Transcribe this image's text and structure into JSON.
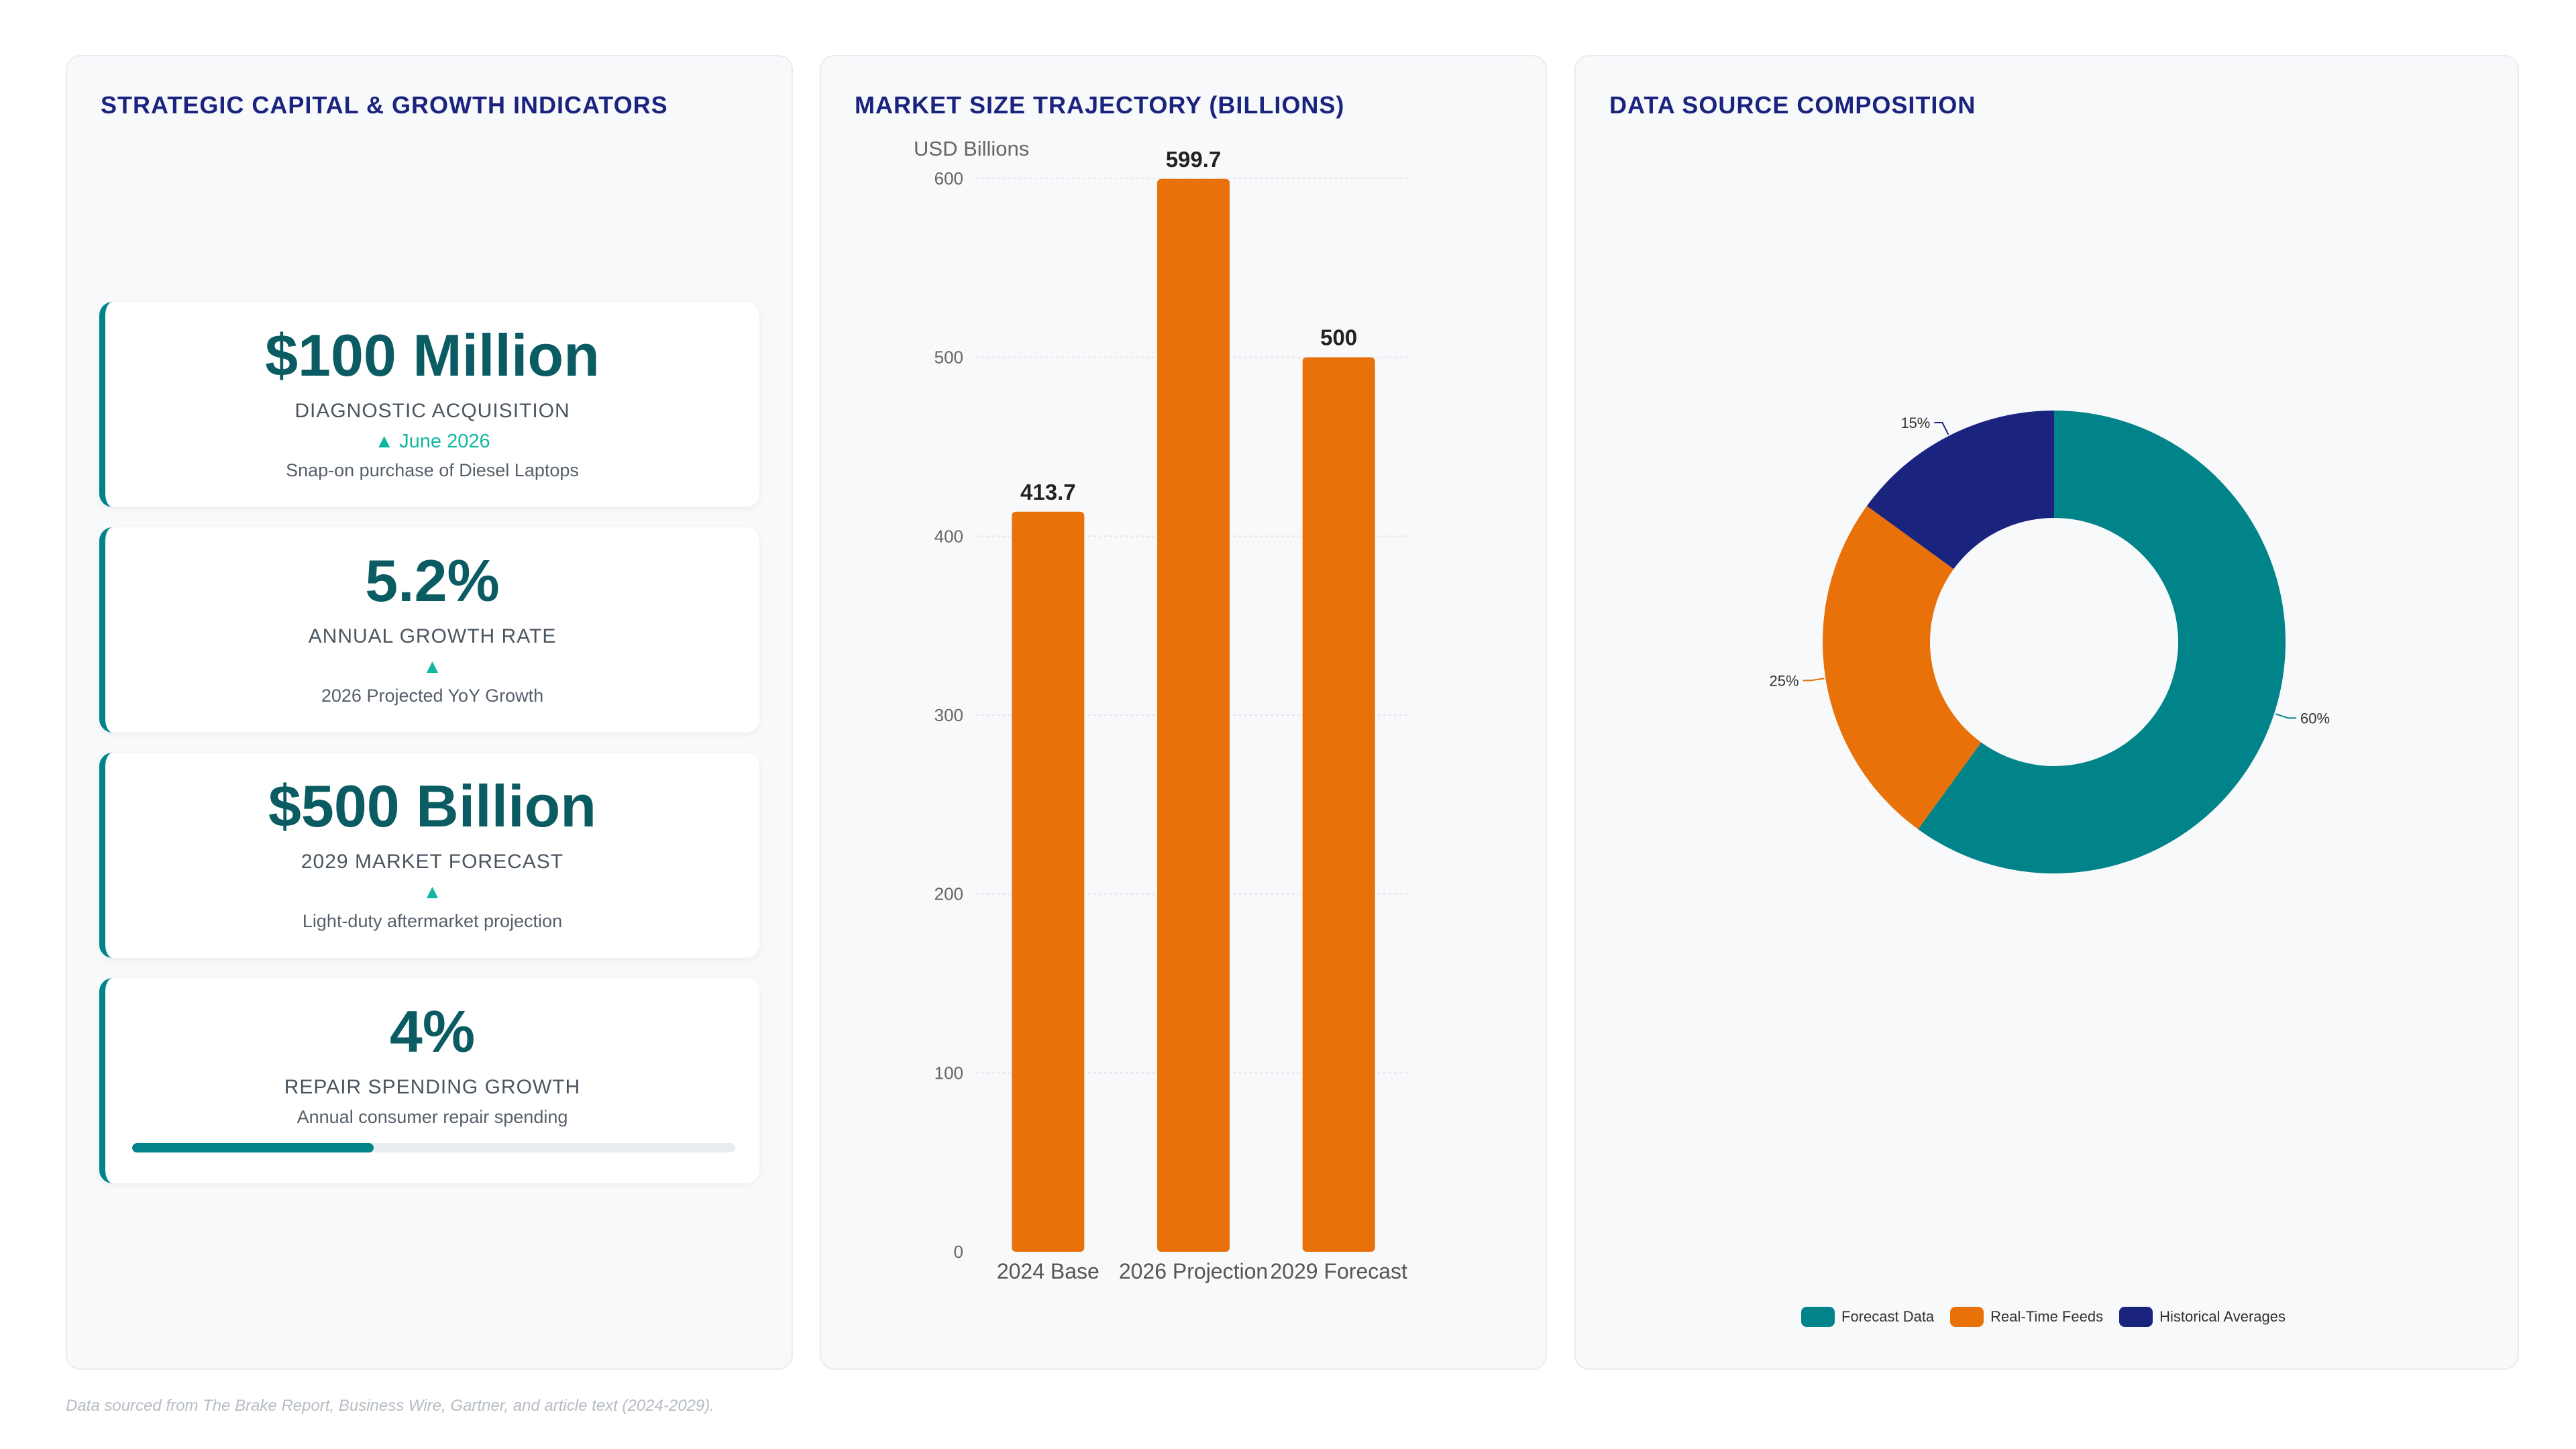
{
  "panels": {
    "left_title": "STRATEGIC CAPITAL & GROWTH INDICATORS",
    "mid_title": "MARKET SIZE TRAJECTORY (BILLIONS)",
    "right_title": "DATA SOURCE COMPOSITION"
  },
  "kpis": [
    {
      "value": "$100 Million",
      "label": "DIAGNOSTIC ACQUISITION",
      "trend": "▲ June 2026",
      "desc": "Snap-on purchase of Diesel Laptops"
    },
    {
      "value": "5.2%",
      "label": "ANNUAL GROWTH RATE",
      "trend": "▲",
      "desc": "2026 Projected YoY Growth"
    },
    {
      "value": "$500 Billion",
      "label": "2029 MARKET FORECAST",
      "trend": "▲",
      "desc": "Light-duty aftermarket projection"
    },
    {
      "value": "4%",
      "label": "REPAIR SPENDING GROWTH",
      "desc": "Annual consumer repair spending",
      "progress": 0.4
    }
  ],
  "chart_data": [
    {
      "type": "bar",
      "title": "MARKET SIZE TRAJECTORY (BILLIONS)",
      "ylabel": "USD Billions",
      "categories": [
        "2024 Base",
        "2026 Projection",
        "2029 Forecast"
      ],
      "values": [
        413.7,
        599.7,
        500
      ],
      "value_labels": [
        "413.7",
        "599.7",
        "500"
      ],
      "ylim": [
        0,
        600
      ],
      "yticks": [
        0,
        100,
        200,
        300,
        400,
        500,
        600
      ],
      "grid": true,
      "color": "#e8710a"
    },
    {
      "type": "pie",
      "title": "DATA SOURCE COMPOSITION",
      "donut": true,
      "legend": "bottom",
      "slices": [
        {
          "name": "Forecast Data",
          "value": 60,
          "label": "60%",
          "color": "#008389"
        },
        {
          "name": "Real-Time Feeds",
          "value": 25,
          "label": "25%",
          "color": "#e8710a"
        },
        {
          "name": "Historical Averages",
          "value": 15,
          "label": "15%",
          "color": "#1a237e"
        }
      ]
    }
  ],
  "footnote": "Data sourced from The Brake Report, Business Wire, Gartner, and article text (2024-2029)."
}
